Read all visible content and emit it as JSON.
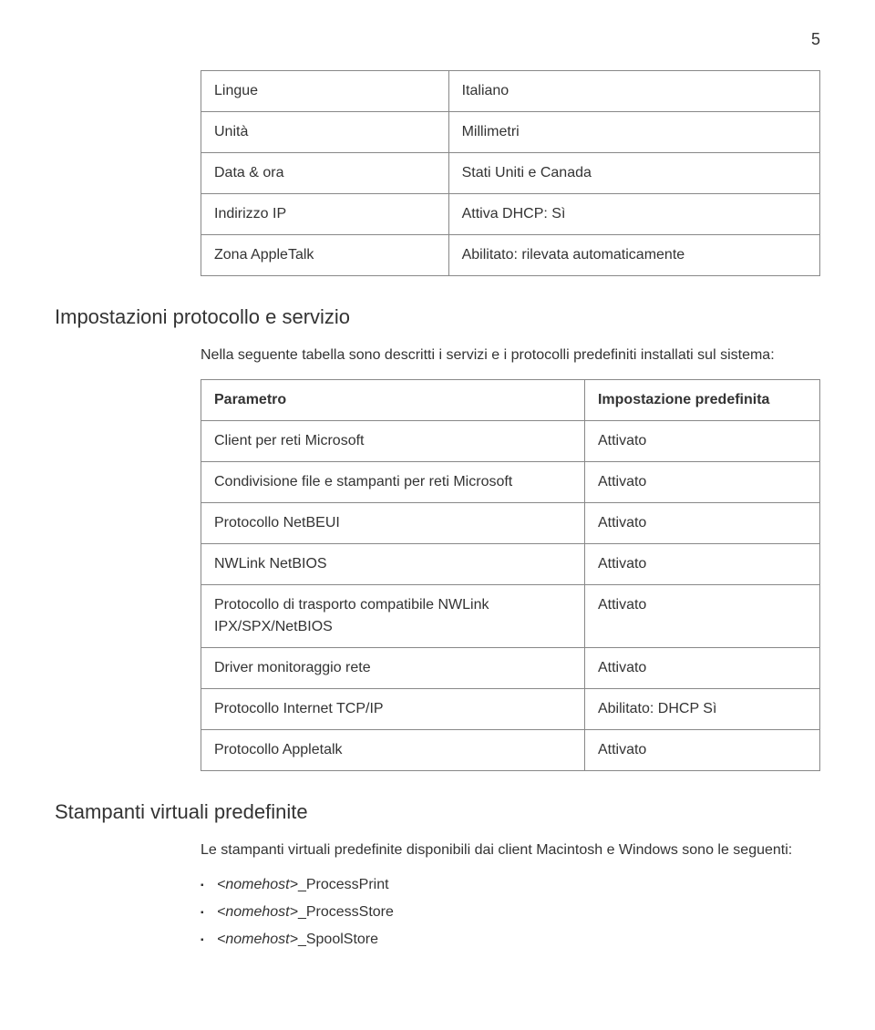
{
  "page_number": "5",
  "table1": {
    "rows": [
      {
        "label": "Lingue",
        "value": "Italiano"
      },
      {
        "label": "Unità",
        "value": "Millimetri"
      },
      {
        "label": "Data & ora",
        "value": "Stati Uniti e Canada"
      },
      {
        "label": "Indirizzo IP",
        "value": "Attiva DHCP: Sì"
      },
      {
        "label": "Zona AppleTalk",
        "value": "Abilitato: rilevata automaticamente"
      }
    ]
  },
  "section1": {
    "heading": "Impostazioni protocollo e servizio",
    "intro": "Nella seguente tabella sono descritti i servizi e i protocolli predefiniti installati sul sistema:"
  },
  "table2": {
    "header": {
      "col1": "Parametro",
      "col2": "Impostazione predefinita"
    },
    "rows": [
      {
        "param": "Client per reti Microsoft",
        "val": "Attivato"
      },
      {
        "param": "Condivisione file e stampanti per reti Microsoft",
        "val": "Attivato"
      },
      {
        "param": "Protocollo NetBEUI",
        "val": "Attivato"
      },
      {
        "param": "NWLink NetBIOS",
        "val": "Attivato"
      },
      {
        "param": "Protocollo di trasporto compatibile NWLink IPX/SPX/NetBIOS",
        "val": "Attivato"
      },
      {
        "param": "Driver monitoraggio rete",
        "val": "Attivato"
      },
      {
        "param": "Protocollo Internet TCP/IP",
        "val": "Abilitato: DHCP Sì"
      },
      {
        "param": "Protocollo Appletalk",
        "val": "Attivato"
      }
    ]
  },
  "section2": {
    "heading": "Stampanti virtuali predefinite",
    "intro": "Le stampanti virtuali predefinite disponibili dai client Macintosh e Windows sono le seguenti:",
    "items": [
      {
        "prefix": "<nomehost>",
        "suffix": "_ProcessPrint"
      },
      {
        "prefix": "<nomehost>",
        "suffix": "_ProcessStore"
      },
      {
        "prefix": "<nomehost>",
        "suffix": "_SpoolStore"
      }
    ]
  }
}
